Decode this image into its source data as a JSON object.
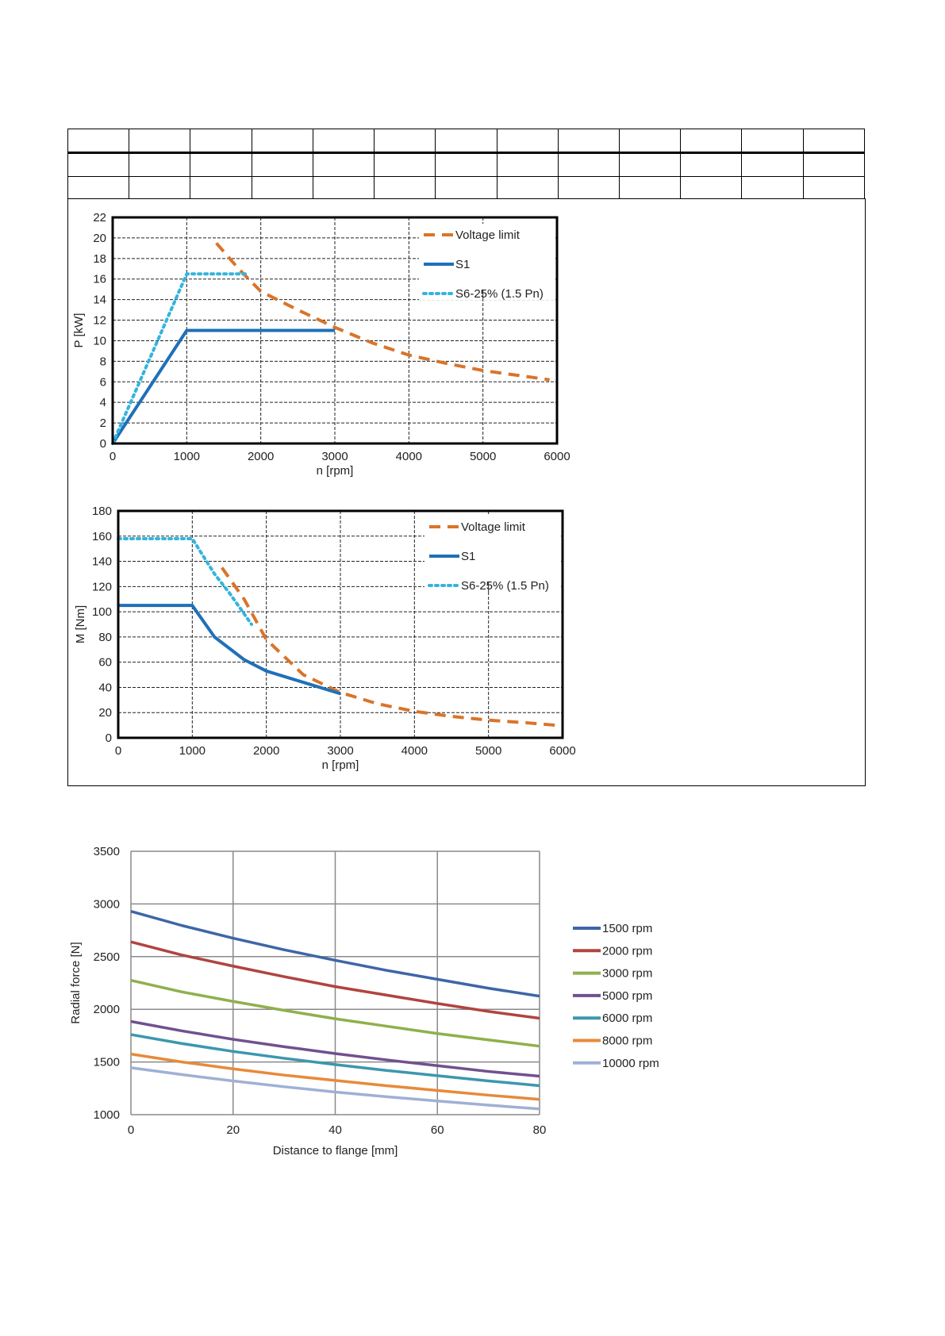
{
  "header_table": {
    "rows": 3,
    "cols": 13
  },
  "colors": {
    "voltage_limit": "#D9742A",
    "s1": "#1F70B8",
    "s6": "#34B4DD"
  },
  "chart_data": [
    {
      "id": "power",
      "type": "line",
      "xlabel": "n [rpm]",
      "ylabel": "P [kW]",
      "xlim": [
        0,
        6000
      ],
      "ylim": [
        0,
        22
      ],
      "xticks": [
        0,
        1000,
        2000,
        3000,
        4000,
        5000,
        6000
      ],
      "yticks": [
        0,
        2,
        4,
        6,
        8,
        10,
        12,
        14,
        16,
        18,
        20,
        22
      ],
      "grid": true,
      "legend_position": "top-right",
      "series": [
        {
          "name": "Voltage limit",
          "style": "dashed",
          "color": "#D9742A",
          "points": [
            [
              1400,
              19.5
            ],
            [
              1700,
              17.0
            ],
            [
              2000,
              14.8
            ],
            [
              2500,
              13.0
            ],
            [
              3000,
              11.3
            ],
            [
              3500,
              9.8
            ],
            [
              4000,
              8.6
            ],
            [
              4500,
              7.8
            ],
            [
              5000,
              7.1
            ],
            [
              5500,
              6.6
            ],
            [
              5900,
              6.2
            ]
          ]
        },
        {
          "name": "S1",
          "style": "solid",
          "color": "#1F70B8",
          "points": [
            [
              0,
              0
            ],
            [
              1000,
              11
            ],
            [
              3000,
              11
            ]
          ]
        },
        {
          "name": "S6-25% (1.5 Pn)",
          "style": "dotted",
          "color": "#34B4DD",
          "points": [
            [
              0,
              0
            ],
            [
              1000,
              16.5
            ],
            [
              1800,
              16.5
            ]
          ]
        }
      ]
    },
    {
      "id": "torque",
      "type": "line",
      "xlabel": "n [rpm]",
      "ylabel": "M [Nm]",
      "xlim": [
        0,
        6000
      ],
      "ylim": [
        0,
        180
      ],
      "xticks": [
        0,
        1000,
        2000,
        3000,
        4000,
        5000,
        6000
      ],
      "yticks": [
        0,
        20,
        40,
        60,
        80,
        100,
        120,
        140,
        160,
        180
      ],
      "grid": true,
      "legend_position": "top-right",
      "series": [
        {
          "name": "Voltage limit",
          "style": "dashed",
          "color": "#D9742A",
          "points": [
            [
              1400,
              135
            ],
            [
              1700,
              110
            ],
            [
              2000,
              78
            ],
            [
              2500,
              50
            ],
            [
              3000,
              36
            ],
            [
              3500,
              27
            ],
            [
              4000,
              21
            ],
            [
              4500,
              17
            ],
            [
              5000,
              14
            ],
            [
              5500,
              12
            ],
            [
              5900,
              10
            ]
          ]
        },
        {
          "name": "S1",
          "style": "solid",
          "color": "#1F70B8",
          "points": [
            [
              0,
              105
            ],
            [
              1000,
              105
            ],
            [
              1300,
              80
            ],
            [
              1700,
              62
            ],
            [
              2000,
              53
            ],
            [
              2500,
              44
            ],
            [
              3000,
              35
            ]
          ]
        },
        {
          "name": "S6-25% (1.5 Pn)",
          "style": "dotted",
          "color": "#34B4DD",
          "points": [
            [
              0,
              158
            ],
            [
              1000,
              158
            ],
            [
              1300,
              130
            ],
            [
              1500,
              115
            ],
            [
              1800,
              90
            ]
          ]
        }
      ]
    },
    {
      "id": "radial",
      "type": "line",
      "xlabel": "Distance to flange [mm]",
      "ylabel": "Radial force [N]",
      "xlim": [
        0,
        80
      ],
      "ylim": [
        1000,
        3500
      ],
      "xticks": [
        0,
        20,
        40,
        60,
        80
      ],
      "yticks": [
        1000,
        1500,
        2000,
        2500,
        3000,
        3500
      ],
      "grid": true,
      "legend_position": "right",
      "series": [
        {
          "name": "1500 rpm",
          "color": "#3E66A8",
          "x": [
            0,
            10,
            20,
            30,
            40,
            50,
            60,
            70,
            80
          ],
          "values": [
            2930,
            2795,
            2675,
            2565,
            2465,
            2370,
            2285,
            2200,
            2125
          ]
        },
        {
          "name": "2000 rpm",
          "color": "#B04440",
          "x": [
            0,
            10,
            20,
            30,
            40,
            50,
            60,
            70,
            80
          ],
          "values": [
            2640,
            2515,
            2410,
            2310,
            2215,
            2135,
            2055,
            1980,
            1915
          ]
        },
        {
          "name": "3000 rpm",
          "color": "#8FB04C",
          "x": [
            0,
            10,
            20,
            30,
            40,
            50,
            60,
            70,
            80
          ],
          "values": [
            2275,
            2165,
            2075,
            1990,
            1910,
            1840,
            1770,
            1710,
            1650
          ]
        },
        {
          "name": "5000 rpm",
          "color": "#71508F",
          "x": [
            0,
            10,
            20,
            30,
            40,
            50,
            60,
            70,
            80
          ],
          "values": [
            1885,
            1795,
            1715,
            1645,
            1580,
            1520,
            1465,
            1410,
            1365
          ]
        },
        {
          "name": "6000 rpm",
          "color": "#3C97AE",
          "x": [
            0,
            10,
            20,
            30,
            40,
            50,
            60,
            70,
            80
          ],
          "values": [
            1760,
            1675,
            1600,
            1535,
            1475,
            1420,
            1370,
            1320,
            1275
          ]
        },
        {
          "name": "8000 rpm",
          "color": "#E78A3A",
          "x": [
            0,
            10,
            20,
            30,
            40,
            50,
            60,
            70,
            80
          ],
          "values": [
            1575,
            1500,
            1435,
            1375,
            1325,
            1275,
            1230,
            1185,
            1145
          ]
        },
        {
          "name": "10000 rpm",
          "color": "#9FB0D5",
          "x": [
            0,
            10,
            20,
            30,
            40,
            50,
            60,
            70,
            80
          ],
          "values": [
            1445,
            1380,
            1320,
            1265,
            1215,
            1170,
            1130,
            1090,
            1055
          ]
        }
      ]
    }
  ]
}
